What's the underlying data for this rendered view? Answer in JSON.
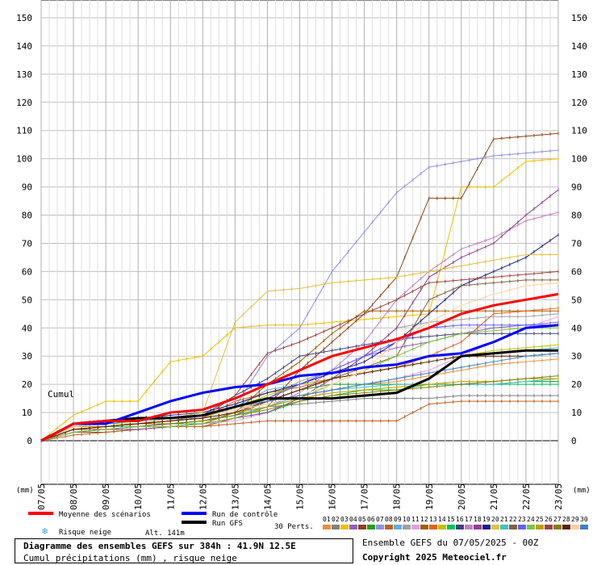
{
  "chart_data": {
    "type": "line",
    "xlabel": "(mm)",
    "ylabel_left": "(mm)",
    "ylabel_right": "(mm)",
    "ylim": [
      0,
      150
    ],
    "yticks": [
      0,
      10,
      20,
      30,
      40,
      50,
      60,
      70,
      80,
      90,
      100,
      110,
      120,
      130,
      140,
      150
    ],
    "categories": [
      "07/05",
      "08/05",
      "09/05",
      "10/05",
      "11/05",
      "12/05",
      "13/05",
      "14/05",
      "15/05",
      "16/05",
      "17/05",
      "18/05",
      "19/05",
      "20/05",
      "21/05",
      "22/05",
      "23/05"
    ],
    "annotation": "Cumul",
    "grid": true,
    "mean_series": {
      "name": "Moyenne des scénarios",
      "color": "#ff0000",
      "values": [
        0,
        6,
        7,
        7,
        10,
        11,
        15,
        20,
        25,
        30,
        33,
        36,
        40,
        45,
        48,
        50,
        52
      ]
    },
    "control_series": {
      "name": "Run de contrôle",
      "color": "#0000ff",
      "values": [
        0,
        6,
        6,
        10,
        14,
        17,
        19,
        20,
        23,
        24,
        26,
        27,
        30,
        31,
        35,
        40,
        41
      ]
    },
    "gfs_series": {
      "name": "Run GFS",
      "color": "#000000",
      "values": [
        0,
        6,
        7,
        8,
        8,
        9,
        12,
        15,
        15,
        15,
        16,
        17,
        22,
        30,
        31,
        32,
        32
      ]
    },
    "perturbations": [
      {
        "color": "#e89040",
        "values": [
          0,
          4,
          5,
          6,
          8,
          9,
          11,
          14,
          16,
          18,
          20,
          21,
          23,
          25,
          27,
          28,
          29
        ]
      },
      {
        "color": "#808080",
        "values": [
          0,
          5,
          5,
          6,
          6,
          7,
          10,
          12,
          13,
          14,
          15,
          15,
          15,
          16,
          16,
          16,
          16
        ]
      },
      {
        "color": "#e8c000",
        "values": [
          0,
          9,
          14,
          14,
          28,
          30,
          40,
          41,
          41,
          42,
          43,
          44,
          45,
          90,
          90,
          99,
          100
        ]
      },
      {
        "color": "#9060c0",
        "values": [
          0,
          4,
          5,
          6,
          7,
          9,
          12,
          15,
          20,
          25,
          30,
          33,
          35,
          38,
          40,
          41,
          42
        ]
      },
      {
        "color": "#8b4513",
        "values": [
          0,
          3,
          3,
          4,
          5,
          5,
          8,
          12,
          25,
          35,
          45,
          58,
          86,
          86,
          107,
          108,
          109
        ]
      },
      {
        "color": "#20a020",
        "values": [
          0,
          4,
          5,
          6,
          7,
          8,
          10,
          14,
          18,
          20,
          20,
          20,
          20,
          20,
          20,
          21,
          21
        ]
      },
      {
        "color": "#9090e0",
        "values": [
          0,
          6,
          7,
          7,
          8,
          8,
          12,
          30,
          40,
          60,
          74,
          88,
          97,
          99,
          101,
          102,
          103
        ]
      },
      {
        "color": "#c06020",
        "values": [
          0,
          2,
          3,
          4,
          5,
          5,
          6,
          7,
          7,
          7,
          7,
          7,
          13,
          14,
          14,
          14,
          14
        ]
      },
      {
        "color": "#60b0e0",
        "values": [
          0,
          5,
          5,
          6,
          7,
          8,
          12,
          18,
          20,
          22,
          24,
          26,
          28,
          30,
          31,
          32,
          33
        ]
      },
      {
        "color": "#a0a0a0",
        "values": [
          0,
          4,
          4,
          5,
          6,
          7,
          9,
          15,
          21,
          25,
          30,
          40,
          42,
          43,
          44,
          44,
          45
        ]
      },
      {
        "color": "#e0a0e0",
        "values": [
          0,
          3,
          4,
          4,
          5,
          6,
          7,
          10,
          14,
          18,
          20,
          22,
          25,
          30,
          35,
          40,
          44
        ]
      },
      {
        "color": "#a06000",
        "values": [
          0,
          3,
          4,
          5,
          5,
          6,
          10,
          20,
          28,
          38,
          46,
          46,
          46,
          46,
          46,
          46,
          46
        ]
      },
      {
        "color": "#e06020",
        "values": [
          0,
          4,
          5,
          6,
          7,
          8,
          14,
          17,
          19,
          22,
          24,
          26,
          30,
          35,
          45,
          46,
          47
        ]
      },
      {
        "color": "#c0c000",
        "values": [
          0,
          5,
          6,
          6,
          7,
          8,
          12,
          16,
          20,
          22,
          24,
          26,
          28,
          30,
          32,
          33,
          34
        ]
      },
      {
        "color": "#00c060",
        "values": [
          0,
          4,
          4,
          5,
          6,
          6,
          8,
          10,
          14,
          16,
          18,
          18,
          20,
          20,
          20,
          20,
          20
        ]
      },
      {
        "color": "#404080",
        "values": [
          0,
          5,
          6,
          7,
          8,
          9,
          16,
          22,
          30,
          32,
          34,
          36,
          37,
          38,
          38,
          38,
          38
        ]
      },
      {
        "color": "#c080c0",
        "values": [
          0,
          3,
          4,
          5,
          6,
          7,
          9,
          12,
          17,
          25,
          35,
          50,
          60,
          68,
          72,
          78,
          81
        ]
      },
      {
        "color": "#904090",
        "values": [
          0,
          3,
          4,
          4,
          5,
          6,
          8,
          10,
          15,
          22,
          30,
          40,
          58,
          65,
          70,
          80,
          89
        ]
      },
      {
        "color": "#202080",
        "values": [
          0,
          6,
          7,
          8,
          9,
          10,
          13,
          17,
          20,
          24,
          28,
          35,
          45,
          55,
          60,
          65,
          73
        ]
      },
      {
        "color": "#e0c040",
        "values": [
          0,
          4,
          5,
          6,
          8,
          10,
          42,
          53,
          54,
          56,
          57,
          58,
          60,
          62,
          64,
          66,
          66
        ]
      },
      {
        "color": "#40c0c0",
        "values": [
          0,
          4,
          5,
          5,
          6,
          7,
          9,
          12,
          16,
          18,
          19,
          20,
          20,
          20,
          20,
          21,
          22
        ]
      },
      {
        "color": "#806040",
        "values": [
          0,
          4,
          4,
          5,
          6,
          7,
          9,
          14,
          18,
          22,
          26,
          30,
          50,
          55,
          56,
          57,
          57
        ]
      },
      {
        "color": "#6060ff",
        "values": [
          0,
          5,
          6,
          7,
          8,
          9,
          12,
          15,
          20,
          25,
          30,
          35,
          40,
          41,
          41,
          41,
          41
        ]
      },
      {
        "color": "#80c040",
        "values": [
          0,
          3,
          4,
          5,
          5,
          6,
          8,
          12,
          15,
          20,
          25,
          30,
          35,
          38,
          39,
          40,
          40
        ]
      },
      {
        "color": "#c0a000",
        "values": [
          0,
          5,
          5,
          6,
          7,
          8,
          10,
          12,
          15,
          17,
          18,
          19,
          20,
          21,
          21,
          22,
          22
        ]
      },
      {
        "color": "#a04040",
        "values": [
          0,
          4,
          5,
          6,
          7,
          8,
          16,
          31,
          35,
          40,
          45,
          50,
          56,
          57,
          58,
          59,
          60
        ]
      },
      {
        "color": "#808000",
        "values": [
          0,
          4,
          5,
          6,
          6,
          7,
          9,
          11,
          14,
          16,
          17,
          18,
          19,
          20,
          21,
          22,
          23
        ]
      },
      {
        "color": "#602000",
        "values": [
          0,
          4,
          5,
          6,
          7,
          8,
          10,
          14,
          18,
          22,
          24,
          26,
          28,
          30,
          30,
          30,
          31
        ]
      },
      {
        "color": "#ffd0a0",
        "values": [
          0,
          5,
          6,
          7,
          8,
          9,
          11,
          13,
          16,
          20,
          25,
          35,
          42,
          48,
          52,
          55,
          56
        ]
      },
      {
        "color": "#4080c0",
        "values": [
          0,
          6,
          6,
          7,
          8,
          9,
          12,
          14,
          16,
          18,
          20,
          22,
          24,
          26,
          28,
          30,
          31
        ]
      }
    ],
    "perts_label": "30 Perts.",
    "pert_numbers": [
      "01",
      "02",
      "03",
      "04",
      "05",
      "06",
      "07",
      "08",
      "09",
      "10",
      "11",
      "12",
      "13",
      "14",
      "15",
      "16",
      "17",
      "18",
      "19",
      "20",
      "21",
      "22",
      "23",
      "24",
      "25",
      "26",
      "27",
      "28",
      "29",
      "30"
    ],
    "pert_colors": [
      "#e89040",
      "#808080",
      "#e8c000",
      "#9060c0",
      "#8b4513",
      "#20a020",
      "#9090e0",
      "#c06020",
      "#60b0e0",
      "#a0a0a0",
      "#e0a0e0",
      "#a06000",
      "#e06020",
      "#c0c000",
      "#00c060",
      "#404080",
      "#c080c0",
      "#904090",
      "#202080",
      "#e0c040",
      "#40c0c0",
      "#806040",
      "#6060ff",
      "#80c040",
      "#c0a000",
      "#a04040",
      "#808000",
      "#602000",
      "#ffd0a0",
      "#4080c0"
    ]
  },
  "legend": {
    "mean": "Moyenne des scénarios",
    "control": "Run de contrôle",
    "gfs": "Run GFS",
    "snow_icon": "snowflake-icon",
    "snow": "Risque neige",
    "altitude": "Alt. 141m"
  },
  "footer": {
    "title": "Diagramme des ensembles GEFS sur 384h : 41.9N 12.5E",
    "subtitle": "Cumul précipitations (mm) , risque neige",
    "run_info": "Ensemble GEFS du 07/05/2025 - 00Z",
    "copyright": "Copyright 2025 Meteociel.fr"
  }
}
